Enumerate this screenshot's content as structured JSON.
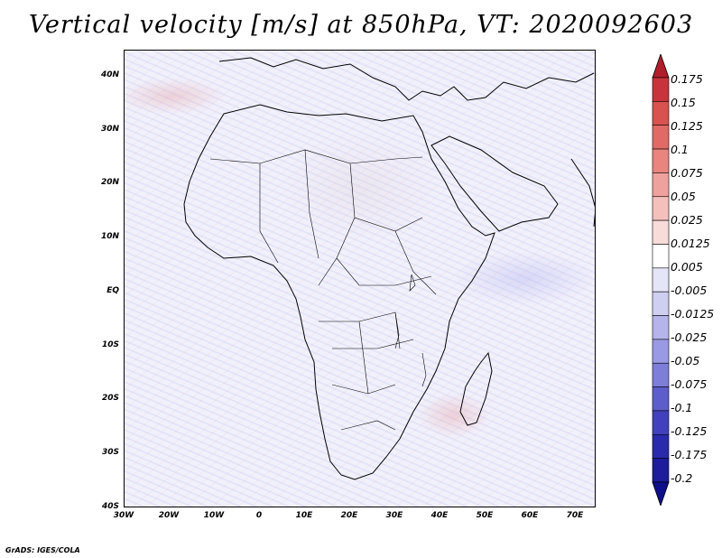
{
  "title": "Vertical velocity [m/s] at 850hPa, VT: 2020092603",
  "lat_labels": [
    "40N",
    "30N",
    "20N",
    "10N",
    "EQ",
    "10S",
    "20S",
    "30S",
    "40S"
  ],
  "lon_labels": [
    "30W",
    "20W",
    "10W",
    "0",
    "10E",
    "20E",
    "30E",
    "40E",
    "50E",
    "60E",
    "70E"
  ],
  "colorbar": {
    "labels": [
      "0.175",
      "0.15",
      "0.125",
      "0.1",
      "0.075",
      "0.05",
      "0.025",
      "0.0125",
      "0.005",
      "-0.005",
      "-0.0125",
      "-0.025",
      "-0.05",
      "-0.075",
      "-0.1",
      "-0.125",
      "-0.175",
      "-0.2"
    ],
    "colors": [
      "#b01e2a",
      "#c9333b",
      "#d9524f",
      "#e26a66",
      "#e9847f",
      "#efa29d",
      "#f4c0bc",
      "#f8dcd9",
      "#ffffff",
      "#e5e5f8",
      "#cfcff2",
      "#b5b5ec",
      "#9a9ae4",
      "#7d7dda",
      "#5d5dcd",
      "#4141bf",
      "#2a2aae",
      "#1c1c9c",
      "#0f0f8a"
    ]
  },
  "credit": "GrADS: IGES/COLA"
}
